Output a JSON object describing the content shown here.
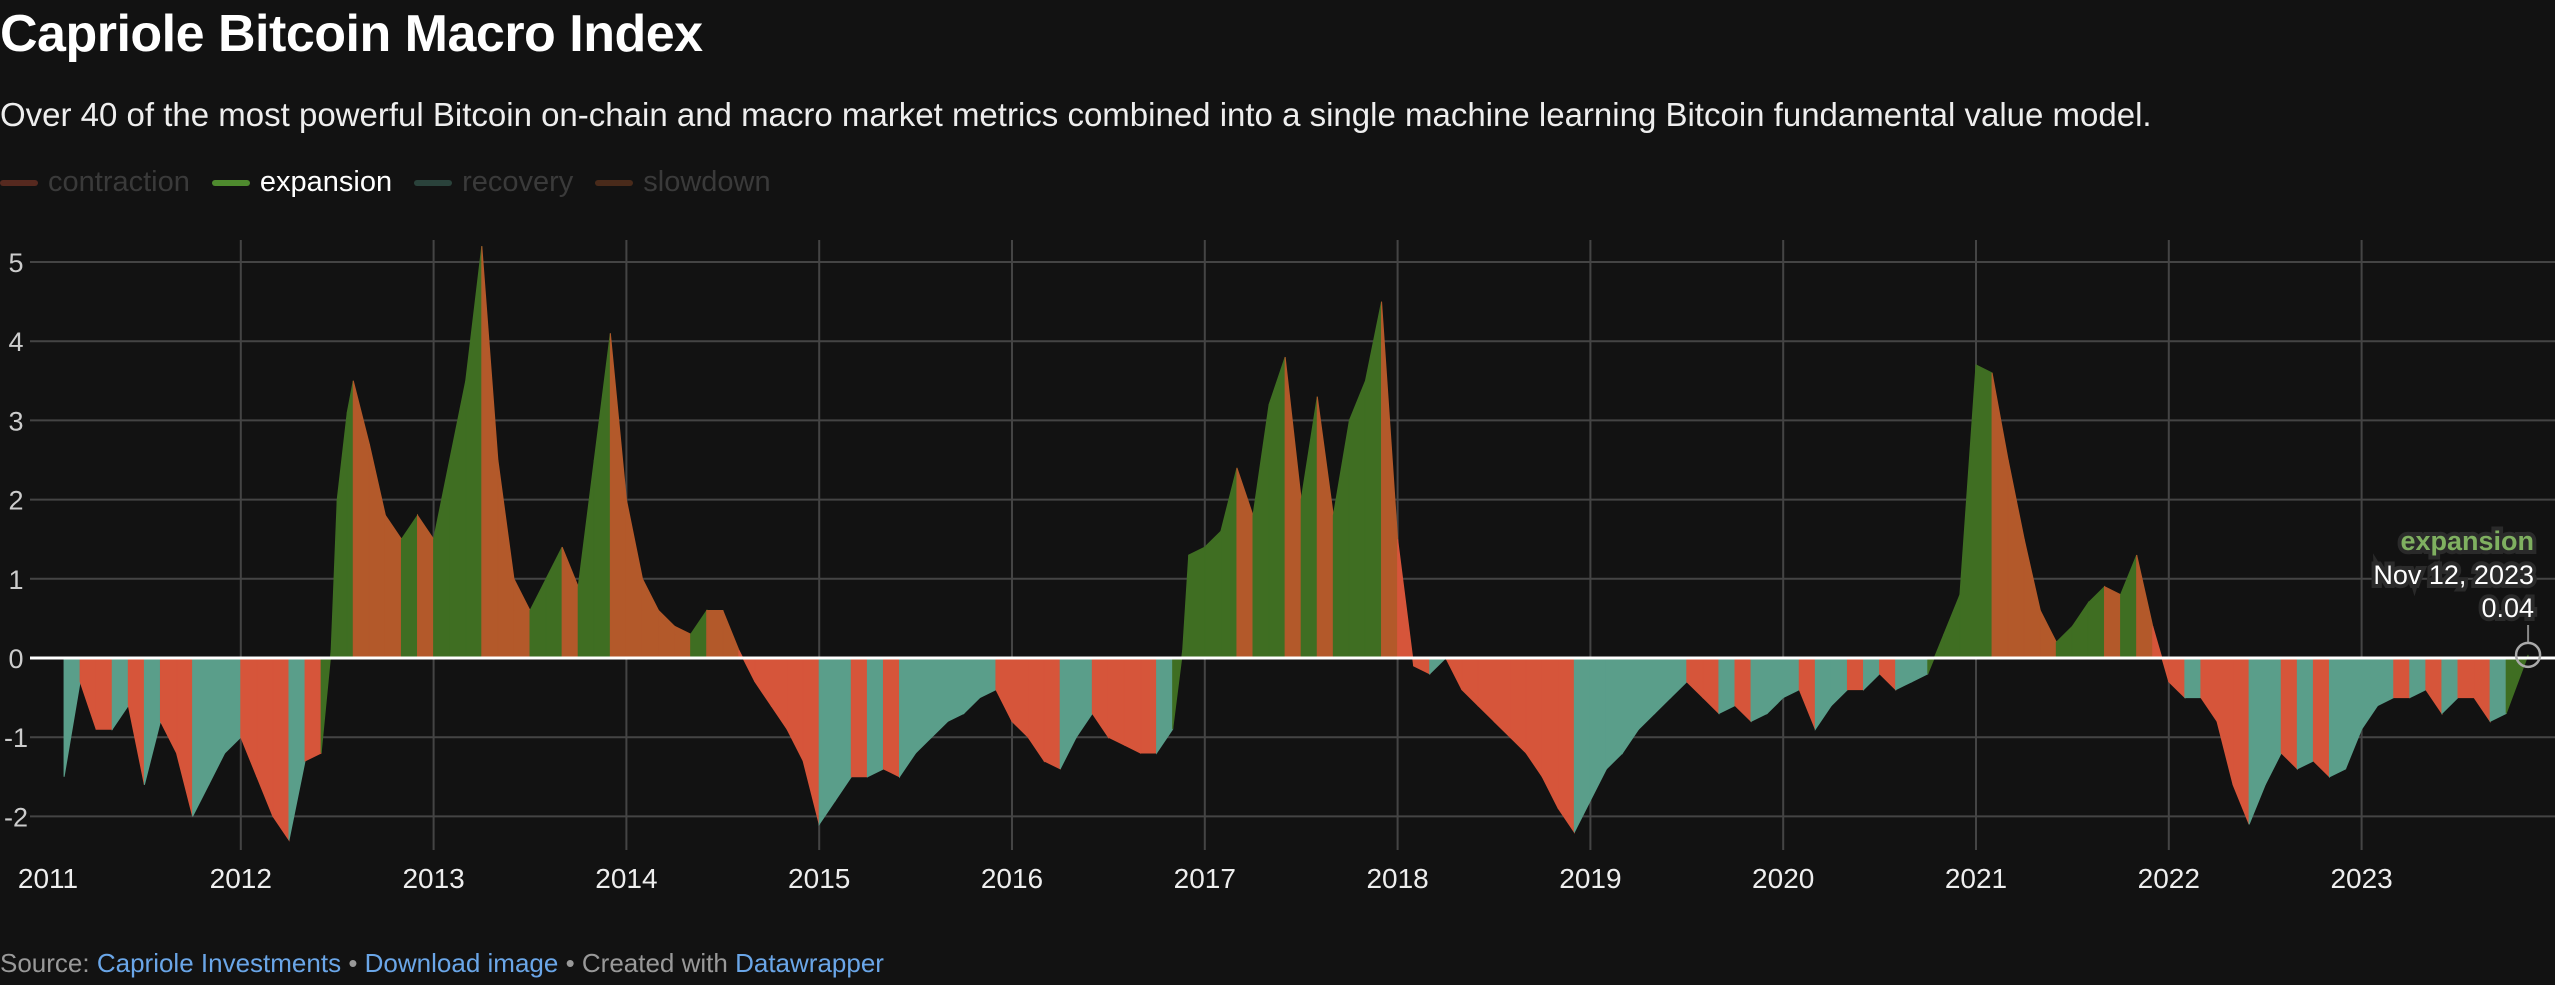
{
  "title": "Capriole Bitcoin Macro Index",
  "subtitle": "Over 40 of the most powerful Bitcoin on-chain and macro market metrics combined into a single machine learning Bitcoin fundamental value model.",
  "legend": [
    {
      "label": "contraction",
      "active": false
    },
    {
      "label": "expansion",
      "active": true
    },
    {
      "label": "recovery",
      "active": false
    },
    {
      "label": "slowdown",
      "active": false
    }
  ],
  "colors": {
    "contraction": "#d6553a",
    "expansion": "#3f6e22",
    "recovery": "#5a9e8a",
    "slowdown": "#b3592a",
    "background": "#121212"
  },
  "tooltip": {
    "series": "expansion",
    "date": "Nov 12, 2023",
    "value": "0.04"
  },
  "footer": {
    "source_prefix": "Source:",
    "source_link": "Capriole Investments",
    "sep1": "•",
    "download": "Download image",
    "sep2": "• Created with",
    "made_with": "Datawrapper"
  },
  "chart_data": {
    "type": "area",
    "title": "Capriole Bitcoin Macro Index",
    "xlabel": "",
    "ylabel": "",
    "xlim": [
      "2011-01",
      "2023-11-12"
    ],
    "ylim": [
      -2.3,
      5.3
    ],
    "yticks": [
      5,
      4,
      3,
      2,
      1,
      0,
      -1,
      -2
    ],
    "xticks": [
      "2011",
      "2012",
      "2013",
      "2014",
      "2015",
      "2016",
      "2017",
      "2018",
      "2019",
      "2020",
      "2021",
      "2022",
      "2023"
    ],
    "grid": true,
    "legend_position": "top-left",
    "points": [
      [
        "2011-02",
        -1.5,
        "C"
      ],
      [
        "2011-03",
        -0.3,
        "R"
      ],
      [
        "2011-04",
        -0.9,
        "C"
      ],
      [
        "2011-05",
        -0.9,
        "C"
      ],
      [
        "2011-06",
        -0.6,
        "R"
      ],
      [
        "2011-07",
        -1.6,
        "C"
      ],
      [
        "2011-08",
        -0.8,
        "R"
      ],
      [
        "2011-09",
        -1.2,
        "C"
      ],
      [
        "2011-10",
        -2.0,
        "C"
      ],
      [
        "2011-11",
        -1.6,
        "R"
      ],
      [
        "2011-12",
        -1.2,
        "R"
      ],
      [
        "2012-01",
        -1.0,
        "R"
      ],
      [
        "2012-02",
        -1.5,
        "C"
      ],
      [
        "2012-03",
        -2.0,
        "C"
      ],
      [
        "2012-04",
        -2.3,
        "C"
      ],
      [
        "2012-05",
        -1.3,
        "R"
      ],
      [
        "2012-06",
        -1.2,
        "C"
      ],
      [
        "2012-06-20",
        0.1,
        "E"
      ],
      [
        "2012-07",
        2.0,
        "E"
      ],
      [
        "2012-07-20",
        3.1,
        "E"
      ],
      [
        "2012-08",
        3.5,
        "E"
      ],
      [
        "2012-09",
        2.7,
        "S"
      ],
      [
        "2012-10",
        1.8,
        "S"
      ],
      [
        "2012-11",
        1.5,
        "S"
      ],
      [
        "2012-12",
        1.8,
        "E"
      ],
      [
        "2013-01",
        1.5,
        "S"
      ],
      [
        "2013-02",
        2.5,
        "E"
      ],
      [
        "2013-03",
        3.5,
        "E"
      ],
      [
        "2013-04",
        5.2,
        "E"
      ],
      [
        "2013-05",
        2.5,
        "S"
      ],
      [
        "2013-06",
        1.0,
        "S"
      ],
      [
        "2013-07",
        0.6,
        "S"
      ],
      [
        "2013-08",
        1.0,
        "E"
      ],
      [
        "2013-09",
        1.4,
        "E"
      ],
      [
        "2013-10",
        0.9,
        "S"
      ],
      [
        "2013-11",
        2.5,
        "E"
      ],
      [
        "2013-12",
        4.1,
        "E"
      ],
      [
        "2014-01",
        2.0,
        "S"
      ],
      [
        "2014-02",
        1.0,
        "S"
      ],
      [
        "2014-03",
        0.6,
        "S"
      ],
      [
        "2014-04",
        0.4,
        "S"
      ],
      [
        "2014-05",
        0.3,
        "S"
      ],
      [
        "2014-06",
        0.6,
        "E"
      ],
      [
        "2014-07",
        0.6,
        "S"
      ],
      [
        "2014-08",
        0.1,
        "S"
      ],
      [
        "2014-09",
        -0.3,
        "C"
      ],
      [
        "2014-10",
        -0.6,
        "C"
      ],
      [
        "2014-11",
        -0.9,
        "C"
      ],
      [
        "2014-12",
        -1.3,
        "C"
      ],
      [
        "2015-01",
        -2.1,
        "C"
      ],
      [
        "2015-02",
        -1.8,
        "R"
      ],
      [
        "2015-03",
        -1.5,
        "R"
      ],
      [
        "2015-04",
        -1.5,
        "C"
      ],
      [
        "2015-05",
        -1.4,
        "R"
      ],
      [
        "2015-06",
        -1.5,
        "C"
      ],
      [
        "2015-07",
        -1.2,
        "R"
      ],
      [
        "2015-08",
        -1.0,
        "R"
      ],
      [
        "2015-09",
        -0.8,
        "R"
      ],
      [
        "2015-10",
        -0.7,
        "R"
      ],
      [
        "2015-11",
        -0.5,
        "R"
      ],
      [
        "2015-12",
        -0.4,
        "R"
      ],
      [
        "2016-01",
        -0.8,
        "C"
      ],
      [
        "2016-02",
        -1.0,
        "C"
      ],
      [
        "2016-03",
        -1.3,
        "C"
      ],
      [
        "2016-04",
        -1.4,
        "C"
      ],
      [
        "2016-05",
        -1.0,
        "R"
      ],
      [
        "2016-06",
        -0.7,
        "R"
      ],
      [
        "2016-07",
        -1.0,
        "C"
      ],
      [
        "2016-08",
        -1.1,
        "C"
      ],
      [
        "2016-09",
        -1.2,
        "C"
      ],
      [
        "2016-10",
        -1.2,
        "C"
      ],
      [
        "2016-11",
        -0.9,
        "R"
      ],
      [
        "2016-11-20",
        0.1,
        "E"
      ],
      [
        "2016-12",
        1.3,
        "E"
      ],
      [
        "2017-01",
        1.4,
        "E"
      ],
      [
        "2017-02",
        1.6,
        "E"
      ],
      [
        "2017-03",
        2.4,
        "E"
      ],
      [
        "2017-04",
        1.8,
        "S"
      ],
      [
        "2017-05",
        3.2,
        "E"
      ],
      [
        "2017-06",
        3.8,
        "E"
      ],
      [
        "2017-07",
        2.0,
        "S"
      ],
      [
        "2017-08",
        3.3,
        "E"
      ],
      [
        "2017-09",
        1.8,
        "S"
      ],
      [
        "2017-10",
        3.0,
        "E"
      ],
      [
        "2017-11",
        3.5,
        "E"
      ],
      [
        "2017-12",
        4.5,
        "E"
      ],
      [
        "2018-01",
        1.5,
        "S"
      ],
      [
        "2018-02",
        -0.1,
        "C"
      ],
      [
        "2018-03",
        -0.2,
        "C"
      ],
      [
        "2018-04",
        0.0,
        "R"
      ],
      [
        "2018-05",
        -0.4,
        "C"
      ],
      [
        "2018-06",
        -0.6,
        "C"
      ],
      [
        "2018-07",
        -0.8,
        "C"
      ],
      [
        "2018-08",
        -1.0,
        "C"
      ],
      [
        "2018-09",
        -1.2,
        "C"
      ],
      [
        "2018-10",
        -1.5,
        "C"
      ],
      [
        "2018-11",
        -1.9,
        "C"
      ],
      [
        "2018-12",
        -2.2,
        "C"
      ],
      [
        "2019-01",
        -1.8,
        "R"
      ],
      [
        "2019-02",
        -1.4,
        "R"
      ],
      [
        "2019-03",
        -1.2,
        "R"
      ],
      [
        "2019-04",
        -0.9,
        "R"
      ],
      [
        "2019-05",
        -0.7,
        "R"
      ],
      [
        "2019-06",
        -0.5,
        "R"
      ],
      [
        "2019-07",
        -0.3,
        "R"
      ],
      [
        "2019-08",
        -0.5,
        "C"
      ],
      [
        "2019-09",
        -0.7,
        "C"
      ],
      [
        "2019-10",
        -0.6,
        "R"
      ],
      [
        "2019-11",
        -0.8,
        "C"
      ],
      [
        "2019-12",
        -0.7,
        "R"
      ],
      [
        "2020-01",
        -0.5,
        "R"
      ],
      [
        "2020-02",
        -0.4,
        "R"
      ],
      [
        "2020-03",
        -0.9,
        "C"
      ],
      [
        "2020-04",
        -0.6,
        "R"
      ],
      [
        "2020-05",
        -0.4,
        "R"
      ],
      [
        "2020-06",
        -0.4,
        "C"
      ],
      [
        "2020-07",
        -0.2,
        "R"
      ],
      [
        "2020-08",
        -0.4,
        "C"
      ],
      [
        "2020-09",
        -0.3,
        "R"
      ],
      [
        "2020-10",
        -0.2,
        "R"
      ],
      [
        "2020-11",
        0.3,
        "E"
      ],
      [
        "2020-12",
        0.8,
        "E"
      ],
      [
        "2021-01",
        3.7,
        "E"
      ],
      [
        "2021-02",
        3.6,
        "E"
      ],
      [
        "2021-03",
        2.5,
        "S"
      ],
      [
        "2021-04",
        1.5,
        "S"
      ],
      [
        "2021-05",
        0.6,
        "S"
      ],
      [
        "2021-06",
        0.2,
        "S"
      ],
      [
        "2021-07",
        0.4,
        "E"
      ],
      [
        "2021-08",
        0.7,
        "E"
      ],
      [
        "2021-09",
        0.9,
        "E"
      ],
      [
        "2021-10",
        0.8,
        "S"
      ],
      [
        "2021-11",
        1.3,
        "E"
      ],
      [
        "2021-12",
        0.4,
        "S"
      ],
      [
        "2022-01",
        -0.3,
        "C"
      ],
      [
        "2022-02",
        -0.5,
        "C"
      ],
      [
        "2022-03",
        -0.5,
        "R"
      ],
      [
        "2022-04",
        -0.8,
        "C"
      ],
      [
        "2022-05",
        -1.6,
        "C"
      ],
      [
        "2022-06",
        -2.1,
        "C"
      ],
      [
        "2022-07",
        -1.6,
        "R"
      ],
      [
        "2022-08",
        -1.2,
        "R"
      ],
      [
        "2022-09",
        -1.4,
        "C"
      ],
      [
        "2022-10",
        -1.3,
        "R"
      ],
      [
        "2022-11",
        -1.5,
        "C"
      ],
      [
        "2022-12",
        -1.4,
        "R"
      ],
      [
        "2023-01",
        -0.9,
        "R"
      ],
      [
        "2023-02",
        -0.6,
        "R"
      ],
      [
        "2023-03",
        -0.5,
        "R"
      ],
      [
        "2023-04",
        -0.5,
        "C"
      ],
      [
        "2023-05",
        -0.4,
        "R"
      ],
      [
        "2023-06",
        -0.7,
        "C"
      ],
      [
        "2023-07",
        -0.5,
        "R"
      ],
      [
        "2023-08",
        -0.5,
        "C"
      ],
      [
        "2023-09",
        -0.8,
        "C"
      ],
      [
        "2023-10",
        -0.7,
        "R"
      ],
      [
        "2023-11-12",
        0.04,
        "E"
      ]
    ]
  }
}
